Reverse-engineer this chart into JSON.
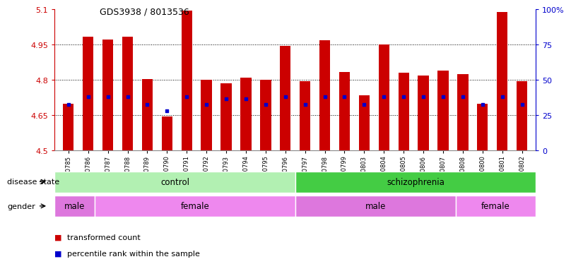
{
  "title": "GDS3938 / 8013536",
  "samples": [
    "GSM630785",
    "GSM630786",
    "GSM630787",
    "GSM630788",
    "GSM630789",
    "GSM630790",
    "GSM630791",
    "GSM630792",
    "GSM630793",
    "GSM630794",
    "GSM630795",
    "GSM630796",
    "GSM630797",
    "GSM630798",
    "GSM630799",
    "GSM630803",
    "GSM630804",
    "GSM630805",
    "GSM630806",
    "GSM630807",
    "GSM630808",
    "GSM630800",
    "GSM630801",
    "GSM630802"
  ],
  "bar_heights": [
    4.7,
    4.985,
    4.972,
    4.985,
    4.805,
    4.645,
    5.095,
    4.8,
    4.785,
    4.81,
    4.8,
    4.945,
    4.795,
    4.97,
    4.835,
    4.735,
    4.95,
    4.83,
    4.82,
    4.84,
    4.825,
    4.7,
    5.09,
    4.795
  ],
  "blue_dot_y": [
    4.695,
    4.73,
    4.73,
    4.73,
    4.695,
    4.668,
    4.728,
    4.695,
    4.72,
    4.72,
    4.695,
    4.728,
    4.695,
    4.73,
    4.728,
    4.695,
    4.728,
    4.728,
    4.728,
    4.728,
    4.728,
    4.695,
    4.728,
    4.695
  ],
  "bar_color": "#cc0000",
  "dot_color": "#0000cc",
  "ylim_left": [
    4.5,
    5.1
  ],
  "ylim_right": [
    0,
    100
  ],
  "yticks_left": [
    4.5,
    4.65,
    4.8,
    4.95,
    5.1
  ],
  "yticks_right": [
    0,
    25,
    50,
    75,
    100
  ],
  "ytick_labels_left": [
    "4.5",
    "4.65",
    "4.8",
    "4.95",
    "5.1"
  ],
  "ytick_labels_right": [
    "0",
    "25",
    "50",
    "75",
    "100%"
  ],
  "left_axis_color": "#cc0000",
  "right_axis_color": "#0000cc",
  "disease_state_groups": [
    {
      "label": "control",
      "start": 0,
      "end": 12,
      "color": "#b2f0b2"
    },
    {
      "label": "schizophrenia",
      "start": 12,
      "end": 24,
      "color": "#44cc44"
    }
  ],
  "gender_groups": [
    {
      "label": "male",
      "start": 0,
      "end": 2,
      "color": "#dd77dd"
    },
    {
      "label": "female",
      "start": 2,
      "end": 12,
      "color": "#ee88ee"
    },
    {
      "label": "male",
      "start": 12,
      "end": 20,
      "color": "#dd77dd"
    },
    {
      "label": "female",
      "start": 20,
      "end": 24,
      "color": "#ee88ee"
    }
  ],
  "legend_items": [
    {
      "label": "transformed count",
      "color": "#cc0000"
    },
    {
      "label": "percentile rank within the sample",
      "color": "#0000cc"
    }
  ],
  "background_color": "#ffffff",
  "bar_width": 0.55,
  "grid_yticks": [
    4.65,
    4.8,
    4.95
  ]
}
